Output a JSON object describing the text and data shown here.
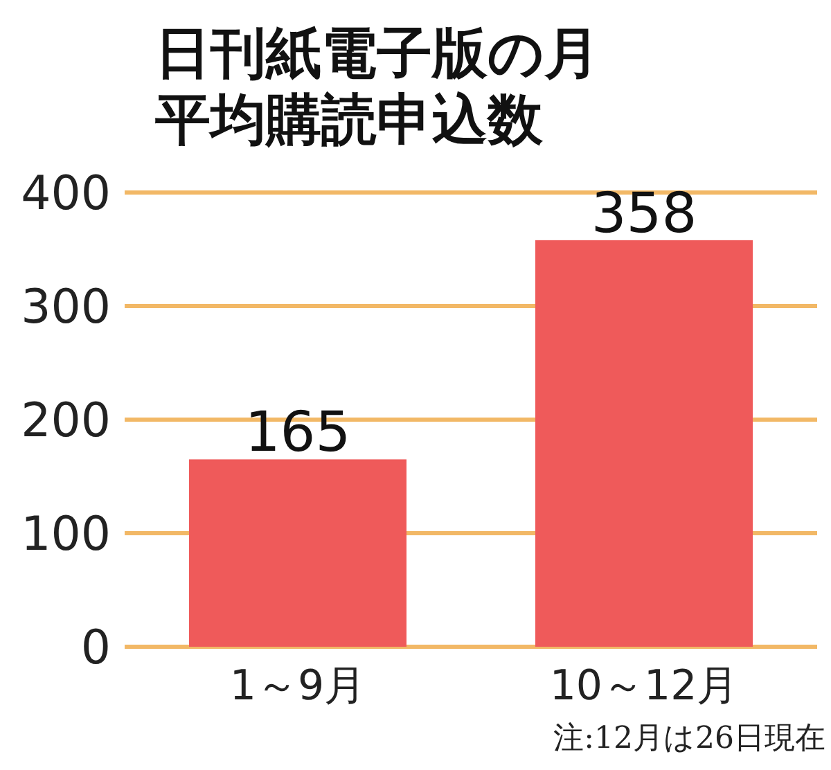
{
  "chart_data": {
    "type": "bar",
    "title": "日刊紙電子版の月平均購読申込数",
    "categories": [
      "1～9月",
      "10～12月"
    ],
    "values": [
      165,
      358
    ],
    "color": "#ef5a5a",
    "ylim": [
      0,
      400
    ],
    "yticks": [
      0,
      100,
      200,
      300,
      400
    ],
    "grid": "y",
    "data_labels": true,
    "annotations": [
      "注:12月は26日現在"
    ]
  }
}
